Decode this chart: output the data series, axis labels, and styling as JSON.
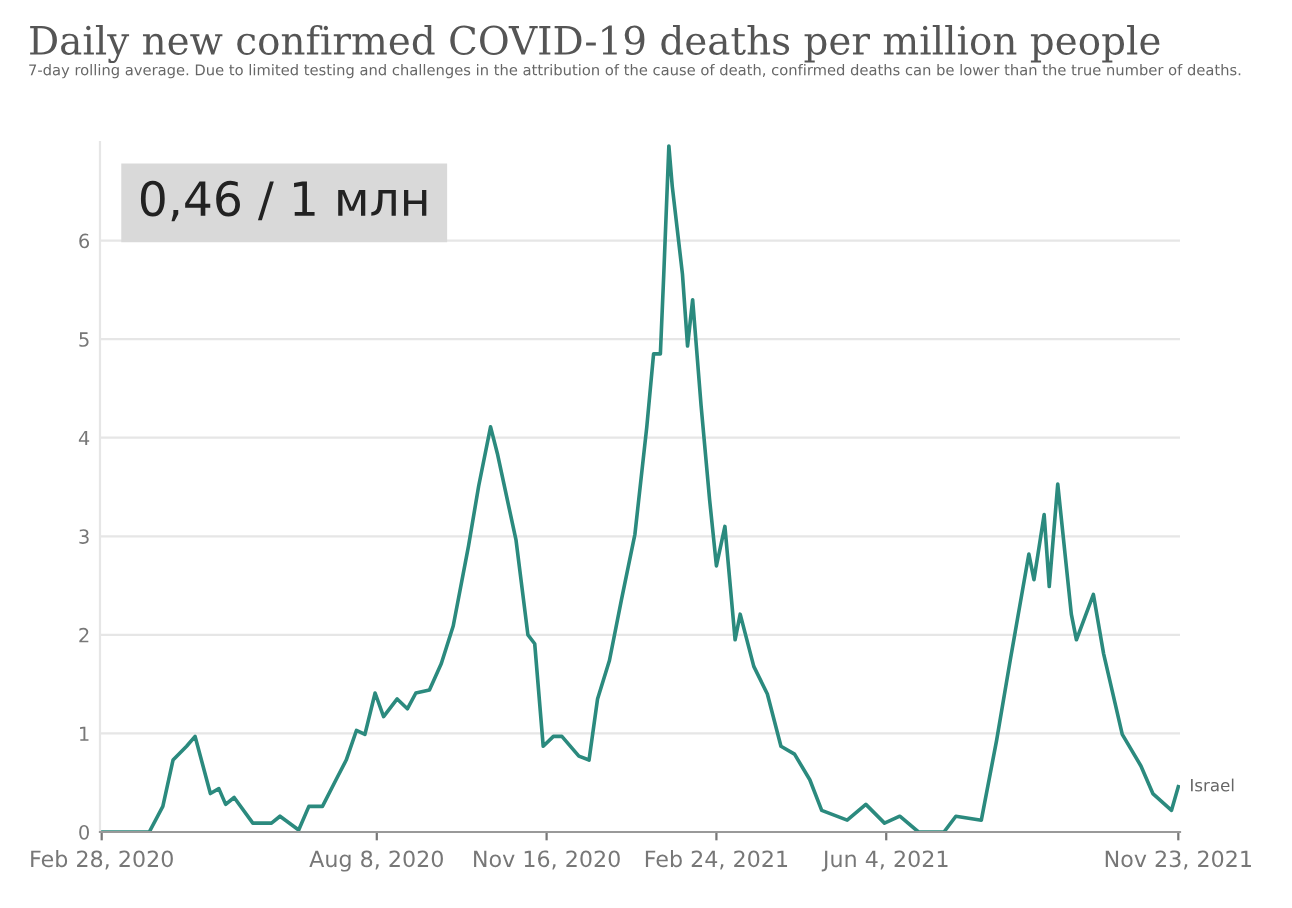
{
  "chart_data": {
    "type": "line",
    "title": "Daily new confirmed COVID-19 deaths per million people",
    "subtitle": "7-day rolling average. Due to limited testing and challenges in the attribution of the cause of death, confirmed deaths can be lower than the true number of deaths.",
    "annotations": [
      "0,46 / 1 млн"
    ],
    "x": [
      "2020-02-28",
      "2020-03-27",
      "2020-04-04",
      "2020-04-10",
      "2020-04-18",
      "2020-04-23",
      "2020-05-02",
      "2020-05-07",
      "2020-05-11",
      "2020-05-16",
      "2020-05-27",
      "2020-06-07",
      "2020-06-12",
      "2020-06-23",
      "2020-06-29",
      "2020-07-07",
      "2020-07-15",
      "2020-07-21",
      "2020-07-27",
      "2020-08-01",
      "2020-08-07",
      "2020-08-12",
      "2020-08-20",
      "2020-08-26",
      "2020-08-31",
      "2020-09-08",
      "2020-09-15",
      "2020-09-22",
      "2020-10-01",
      "2020-10-07",
      "2020-10-14",
      "2020-10-18",
      "2020-10-29",
      "2020-11-05",
      "2020-11-09",
      "2020-11-14",
      "2020-11-20",
      "2020-11-25",
      "2020-12-05",
      "2020-12-11",
      "2020-12-16",
      "2020-12-23",
      "2020-12-30",
      "2021-01-07",
      "2021-01-14",
      "2021-01-18",
      "2021-01-22",
      "2021-01-24",
      "2021-01-27",
      "2021-01-29",
      "2021-02-04",
      "2021-02-07",
      "2021-02-10",
      "2021-02-15",
      "2021-02-20",
      "2021-02-24",
      "2021-03-01",
      "2021-03-07",
      "2021-03-10",
      "2021-03-18",
      "2021-03-26",
      "2021-04-03",
      "2021-04-11",
      "2021-04-20",
      "2021-04-27",
      "2021-05-12",
      "2021-05-23",
      "2021-06-03",
      "2021-06-12",
      "2021-06-23",
      "2021-07-08",
      "2021-07-15",
      "2021-07-30",
      "2021-08-08",
      "2021-08-16",
      "2021-08-27",
      "2021-08-30",
      "2021-09-05",
      "2021-09-08",
      "2021-09-13",
      "2021-09-21",
      "2021-09-24",
      "2021-10-04",
      "2021-10-10",
      "2021-10-21",
      "2021-11-01",
      "2021-11-08",
      "2021-11-19",
      "2021-11-23"
    ],
    "series": [
      {
        "name": "Israel",
        "color": "#2b8a7e",
        "values": [
          0,
          0,
          0.26,
          0.73,
          0.87,
          0.97,
          0.39,
          0.44,
          0.28,
          0.35,
          0.09,
          0.09,
          0.16,
          0.02,
          0.26,
          0.26,
          0.53,
          0.73,
          1.03,
          0.99,
          1.41,
          1.17,
          1.35,
          1.25,
          1.41,
          1.44,
          1.71,
          2.09,
          2.9,
          3.51,
          4.11,
          3.84,
          2.96,
          2.0,
          1.91,
          0.87,
          0.97,
          0.97,
          0.77,
          0.73,
          1.35,
          1.74,
          2.35,
          3.02,
          4.11,
          4.85,
          4.85,
          5.66,
          6.96,
          6.55,
          5.66,
          4.93,
          5.4,
          4.32,
          3.37,
          2.7,
          3.1,
          1.95,
          2.21,
          1.68,
          1.4,
          0.87,
          0.79,
          0.53,
          0.22,
          0.12,
          0.28,
          0.09,
          0.16,
          0,
          0,
          0.16,
          0.12,
          0.93,
          1.74,
          2.82,
          2.56,
          3.22,
          2.49,
          3.53,
          2.21,
          1.95,
          2.41,
          1.81,
          0.99,
          0.67,
          0.39,
          0.22,
          0.46
        ]
      }
    ],
    "xlim": [
      "2020-02-27",
      "2021-11-24"
    ],
    "xticks": [
      {
        "value": "2020-02-28",
        "label": "Feb 28, 2020"
      },
      {
        "value": "2020-08-08",
        "label": "Aug 8, 2020"
      },
      {
        "value": "2020-11-16",
        "label": "Nov 16, 2020"
      },
      {
        "value": "2021-02-24",
        "label": "Feb 24, 2021"
      },
      {
        "value": "2021-06-04",
        "label": "Jun 4, 2021"
      },
      {
        "value": "2021-11-23",
        "label": "Nov 23, 2021"
      }
    ],
    "ylim": [
      0,
      7
    ],
    "yticks": [
      0,
      1,
      2,
      3,
      4,
      5,
      6
    ],
    "grid": "y",
    "legend": false,
    "line_style": "solid",
    "marker": "none"
  }
}
